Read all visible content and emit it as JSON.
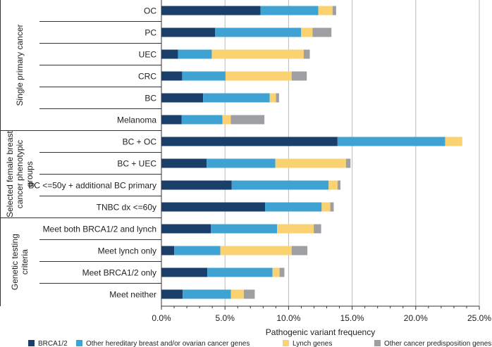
{
  "chart_data": {
    "type": "bar",
    "orientation": "horizontal",
    "stacked": true,
    "xlabel": "Pathogenic variant frequency",
    "xlim": [
      0,
      25
    ],
    "xticks": [
      "0.0%",
      "5.0%",
      "10.0%",
      "15.0%",
      "20.0%",
      "25.0%"
    ],
    "grid": true,
    "legend_position": "bottom",
    "groups": [
      {
        "label": "Single primary cancer",
        "categories": [
          "OC",
          "PC",
          "UEC",
          "CRC",
          "BC",
          "Melanoma"
        ]
      },
      {
        "label": "Selected female breast cancer phenotypic groups",
        "categories": [
          "BC + OC",
          "BC + UEC",
          "BC <=50y + additional BC primary",
          "TNBC dx <=60y"
        ]
      },
      {
        "label": "Genetic testing criteria",
        "categories": [
          "Meet both BRCA1/2 and lynch",
          "Meet lynch only",
          "Meet BRCA1/2 only",
          "Meet neither"
        ]
      }
    ],
    "categories": [
      "OC",
      "PC",
      "UEC",
      "CRC",
      "BC",
      "Melanoma",
      "BC + OC",
      "BC + UEC",
      "BC <=50y + additional BC primary",
      "TNBC dx <=60y",
      "Meet both BRCA1/2 and lynch",
      "Meet lynch only",
      "Meet BRCA1/2 only",
      "Meet neither"
    ],
    "series": [
      {
        "name": "BRCA1/2",
        "color": "#1a3f6b",
        "values": [
          7.8,
          4.23,
          1.3,
          1.63,
          3.28,
          1.58,
          13.85,
          3.55,
          5.53,
          8.15,
          3.88,
          1.01,
          3.61,
          1.67
        ]
      },
      {
        "name": "Other hereditary breast and/or ovarian cancer genes",
        "color": "#3ea3d3",
        "values": [
          4.54,
          6.76,
          2.66,
          3.41,
          5.24,
          3.22,
          8.46,
          5.41,
          7.62,
          4.45,
          5.22,
          3.62,
          5.13,
          3.79
        ]
      },
      {
        "name": "Lynch genes",
        "color": "#fbd271",
        "values": [
          1.12,
          0.9,
          7.23,
          5.2,
          0.49,
          0.66,
          1.35,
          5.55,
          0.7,
          0.68,
          2.88,
          5.61,
          0.55,
          1.02
        ]
      },
      {
        "name": "Other cancer predisposition genes",
        "color": "#9d9fa2",
        "values": [
          0.28,
          1.48,
          0.48,
          1.19,
          0.24,
          2.64,
          0,
          0.36,
          0.23,
          0.27,
          0.58,
          1.24,
          0.38,
          0.86
        ]
      }
    ]
  }
}
